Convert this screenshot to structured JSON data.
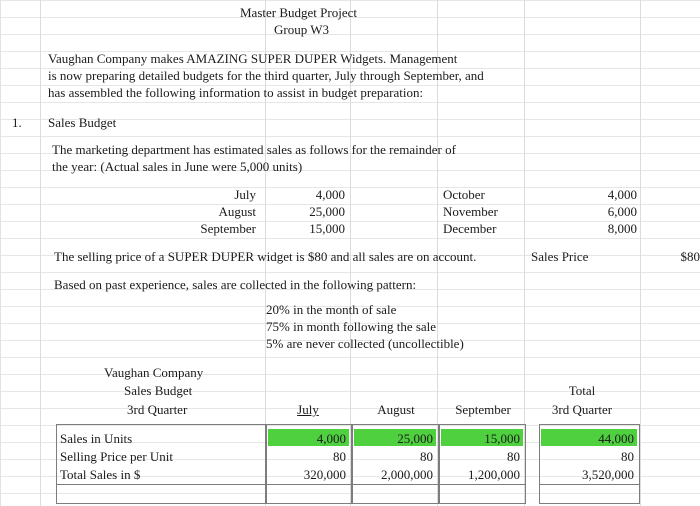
{
  "header": {
    "title": "Master Budget Project",
    "subtitle": "Group W3"
  },
  "intro": {
    "line1": "Vaughan Company makes AMAZING SUPER DUPER Widgets. Management",
    "line2": "is now preparing detailed budgets for the third quarter, July through September, and",
    "line3": "has assembled the following information to assist in budget preparation:"
  },
  "section": {
    "number": "1.",
    "title": "Sales Budget"
  },
  "marketing": {
    "line1": "The marketing department has estimated sales as follows for the remainder of",
    "line2": "the year: (Actual sales in June were 5,000 units)"
  },
  "estimates": {
    "left": [
      {
        "month": "July",
        "units": "4,000"
      },
      {
        "month": "August",
        "units": "25,000"
      },
      {
        "month": "September",
        "units": "15,000"
      }
    ],
    "right": [
      {
        "month": "October",
        "units": "4,000"
      },
      {
        "month": "November",
        "units": "6,000"
      },
      {
        "month": "December",
        "units": "8,000"
      }
    ]
  },
  "price": {
    "sentence": "The selling price of a SUPER DUPER widget is $80 and all sales are on account.",
    "label": "Sales Price",
    "value": "$80"
  },
  "collection": {
    "intro": "Based on past experience, sales are collected in the following pattern:",
    "items": [
      "20% in the month of sale",
      "75% in month following the sale",
      "5%  are never collected (uncollectible)"
    ]
  },
  "budget": {
    "company": "Vaughan Company",
    "name": "Sales Budget",
    "period": "3rd Quarter",
    "columns": [
      "July",
      "August",
      "September"
    ],
    "total_label_1": "Total",
    "total_label_2": "3rd Quarter",
    "rows": [
      {
        "label": "Sales in Units",
        "values": [
          "4,000",
          "25,000",
          "15,000"
        ],
        "total": "44,000"
      },
      {
        "label": "Selling Price per Unit",
        "values": [
          "80",
          "80",
          "80"
        ],
        "total": "80"
      },
      {
        "label": "Total Sales in $",
        "values": [
          "320,000",
          "2,000,000",
          "1,200,000"
        ],
        "total": "3,520,000"
      }
    ]
  },
  "colors": {
    "highlight": "#4fd13f",
    "grid": "#e2e2e2"
  }
}
